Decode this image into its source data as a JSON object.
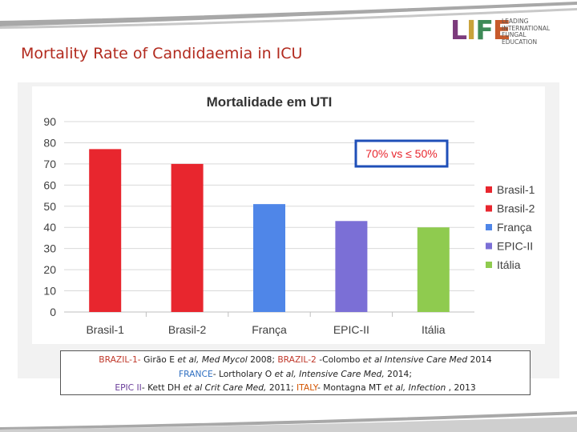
{
  "slide": {
    "title": "Mortality Rate of Candidaemia in ICU",
    "logo": {
      "mark": [
        "L",
        "I",
        "F",
        "E"
      ],
      "tagline": [
        "LEADING",
        "INTERNATIONAL",
        "FUNGAL",
        "EDUCATION"
      ]
    }
  },
  "colors": {
    "title": "#b22a1e",
    "band": "#9a9a9a",
    "brasil": "#e8262e",
    "franca": "#4f86e8",
    "epic": "#7b6fd6",
    "italia": "#8fcb4f",
    "callout_border": "#1f4fb8",
    "refs_red": "#c0392b",
    "refs_blue": "#2f6fc1",
    "refs_purple": "#6a3d9a",
    "refs_orange": "#d35400"
  },
  "chart_data": {
    "type": "bar",
    "title": "Mortalidade em UTI",
    "categories": [
      "Brasil-1",
      "Brasil-2",
      "França",
      "EPIC-II",
      "Itália"
    ],
    "values": [
      77,
      70,
      51,
      43,
      40
    ],
    "bar_colors": [
      "#e8262e",
      "#e8262e",
      "#4f86e8",
      "#7b6fd6",
      "#8fcb4f"
    ],
    "ylim": [
      0,
      90
    ],
    "yticks": [
      0,
      10,
      20,
      30,
      40,
      50,
      60,
      70,
      80,
      90
    ],
    "grid": true,
    "legend": {
      "placement": "right",
      "entries": [
        {
          "label": "Brasil-1",
          "color": "#e8262e"
        },
        {
          "label": "Brasil-2",
          "color": "#e8262e"
        },
        {
          "label": "França",
          "color": "#4f86e8"
        },
        {
          "label": "EPIC-II",
          "color": "#7b6fd6"
        },
        {
          "label": "Itália",
          "color": "#8fcb4f"
        }
      ]
    },
    "annotation": "70% vs ≤ 50%"
  },
  "references": {
    "line1": [
      {
        "text": "BRAZIL-1- ",
        "style": "red"
      },
      {
        "text": "Girão E ",
        "style": "plain"
      },
      {
        "text": "et al, Med Mycol ",
        "style": "italic"
      },
      {
        "text": "2008; ",
        "style": "plain"
      },
      {
        "text": "BRAZIL-2",
        "style": "red"
      },
      {
        "text": " -Colombo ",
        "style": "plain"
      },
      {
        "text": "et al Intensive Care Med ",
        "style": "italic"
      },
      {
        "text": "2014",
        "style": "plain"
      }
    ],
    "line2": [
      {
        "text": "FRANCE",
        "style": "blue"
      },
      {
        "text": "- Lortholary O ",
        "style": "plain"
      },
      {
        "text": "et al, Intensive Care Med, ",
        "style": "italic"
      },
      {
        "text": "2014;",
        "style": "plain"
      }
    ],
    "line3": [
      {
        "text": "EPIC II",
        "style": "purple"
      },
      {
        "text": "- Kett  DH ",
        "style": "plain"
      },
      {
        "text": "et al Crit Care Med, ",
        "style": "italic"
      },
      {
        "text": "2011; ",
        "style": "plain"
      },
      {
        "text": "ITALY",
        "style": "orange"
      },
      {
        "text": "- Montagna MT ",
        "style": "plain"
      },
      {
        "text": "et al, Infection ",
        "style": "italic"
      },
      {
        "text": ", 2013",
        "style": "plain"
      }
    ]
  }
}
